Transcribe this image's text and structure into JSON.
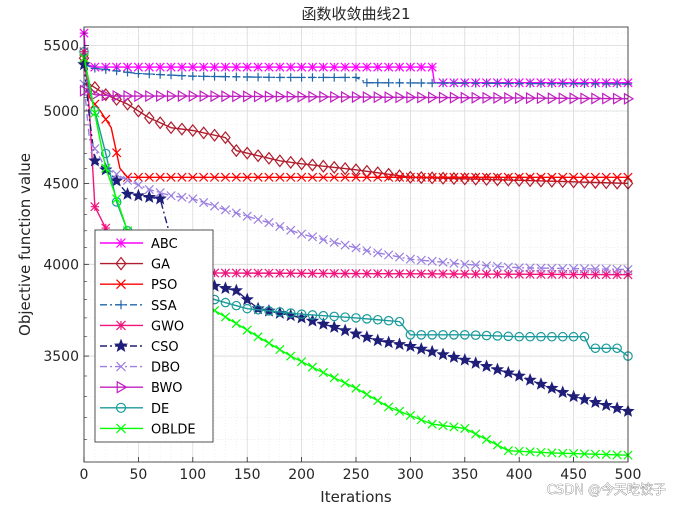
{
  "chart_data": {
    "type": "line",
    "title": "函数收敛曲线21",
    "xlabel": "Iterations",
    "ylabel": "Objective function value",
    "xlim": [
      0,
      500
    ],
    "ylim": [
      3000,
      5650
    ],
    "yscale": "log",
    "grid": true,
    "minor_grid": true,
    "legend_location": "bottom-left",
    "x_ticks": [
      0,
      50,
      100,
      150,
      200,
      250,
      300,
      350,
      400,
      450,
      500
    ],
    "y_ticks": [
      3500,
      4000,
      4500,
      5000,
      5500
    ],
    "y_minor_ticks": [
      3100,
      3200,
      3300,
      3400,
      3600,
      3700,
      3800,
      3900,
      4100,
      4200,
      4300,
      4400,
      4600,
      4700,
      4800,
      4900,
      5100,
      5200,
      5300,
      5400,
      5600
    ],
    "series": [
      {
        "name": "ABC",
        "color": "#ff00ff",
        "dash": "solid",
        "marker": "asterisk",
        "marker_every": 10,
        "points": [
          [
            0,
            5600
          ],
          [
            2,
            5350
          ],
          [
            10,
            5330
          ],
          [
            320,
            5330
          ],
          [
            322,
            5210
          ],
          [
            500,
            5210
          ]
        ]
      },
      {
        "name": "GA",
        "color": "#b01e2e",
        "dash": "solid",
        "marker": "diamond",
        "marker_every": 10,
        "points": [
          [
            0,
            5400
          ],
          [
            5,
            5200
          ],
          [
            20,
            5120
          ],
          [
            40,
            5050
          ],
          [
            60,
            4950
          ],
          [
            80,
            4880
          ],
          [
            100,
            4860
          ],
          [
            130,
            4810
          ],
          [
            140,
            4720
          ],
          [
            180,
            4650
          ],
          [
            200,
            4630
          ],
          [
            250,
            4590
          ],
          [
            300,
            4540
          ],
          [
            350,
            4530
          ],
          [
            400,
            4520
          ],
          [
            500,
            4500
          ]
        ]
      },
      {
        "name": "PSO",
        "color": "#ff0000",
        "dash": "solid",
        "marker": "x",
        "marker_every": 10,
        "points": [
          [
            0,
            5400
          ],
          [
            5,
            5100
          ],
          [
            15,
            5000
          ],
          [
            25,
            4880
          ],
          [
            33,
            4600
          ],
          [
            40,
            4540
          ],
          [
            500,
            4540
          ]
        ]
      },
      {
        "name": "SSA",
        "color": "#2166ac",
        "dash": "dashdot",
        "marker": "plus",
        "marker_every": 10,
        "points": [
          [
            0,
            5350
          ],
          [
            10,
            5320
          ],
          [
            50,
            5280
          ],
          [
            100,
            5260
          ],
          [
            180,
            5250
          ],
          [
            250,
            5250
          ],
          [
            260,
            5210
          ],
          [
            500,
            5200
          ]
        ]
      },
      {
        "name": "GWO",
        "color": "#f0147d",
        "dash": "solid",
        "marker": "asterisk",
        "marker_every": 10,
        "points": [
          [
            0,
            5450
          ],
          [
            5,
            5000
          ],
          [
            10,
            4350
          ],
          [
            25,
            4150
          ],
          [
            40,
            4050
          ],
          [
            60,
            3990
          ],
          [
            100,
            3960
          ],
          [
            120,
            3950
          ],
          [
            500,
            3940
          ]
        ]
      },
      {
        "name": "CSO",
        "color": "#1f1f7a",
        "dash": "dashdot",
        "marker": "star",
        "marker_every": 10,
        "points": [
          [
            0,
            5350
          ],
          [
            5,
            4950
          ],
          [
            10,
            4650
          ],
          [
            25,
            4560
          ],
          [
            40,
            4430
          ],
          [
            70,
            4400
          ],
          [
            80,
            4150
          ],
          [
            100,
            3900
          ],
          [
            140,
            3850
          ],
          [
            160,
            3750
          ],
          [
            200,
            3700
          ],
          [
            230,
            3650
          ],
          [
            270,
            3580
          ],
          [
            300,
            3550
          ],
          [
            350,
            3480
          ],
          [
            400,
            3400
          ],
          [
            450,
            3300
          ],
          [
            500,
            3230
          ]
        ]
      },
      {
        "name": "DBO",
        "color": "#9b7fe0",
        "dash": "dashdot",
        "marker": "x",
        "marker_every": 10,
        "points": [
          [
            0,
            5200
          ],
          [
            5,
            4800
          ],
          [
            20,
            4600
          ],
          [
            40,
            4520
          ],
          [
            60,
            4460
          ],
          [
            80,
            4420
          ],
          [
            100,
            4400
          ],
          [
            130,
            4330
          ],
          [
            170,
            4250
          ],
          [
            200,
            4180
          ],
          [
            230,
            4130
          ],
          [
            260,
            4080
          ],
          [
            300,
            4030
          ],
          [
            350,
            4000
          ],
          [
            400,
            3980
          ],
          [
            500,
            3970
          ]
        ]
      },
      {
        "name": "BWO",
        "color": "#c020c0",
        "dash": "solid",
        "marker": "triangle-right",
        "marker_every": 10,
        "points": [
          [
            0,
            5150
          ],
          [
            10,
            5120
          ],
          [
            30,
            5110
          ],
          [
            100,
            5110
          ],
          [
            300,
            5100
          ],
          [
            500,
            5090
          ]
        ]
      },
      {
        "name": "DE",
        "color": "#1a9a9a",
        "dash": "solid",
        "marker": "circle",
        "marker_every": 10,
        "points": [
          [
            0,
            5450
          ],
          [
            5,
            5150
          ],
          [
            10,
            5000
          ],
          [
            20,
            4700
          ],
          [
            30,
            4380
          ],
          [
            40,
            4200
          ],
          [
            60,
            4050
          ],
          [
            80,
            3900
          ],
          [
            100,
            3850
          ],
          [
            120,
            3800
          ],
          [
            150,
            3750
          ],
          [
            200,
            3720
          ],
          [
            250,
            3700
          ],
          [
            270,
            3690
          ],
          [
            290,
            3680
          ],
          [
            300,
            3610
          ],
          [
            350,
            3610
          ],
          [
            400,
            3600
          ],
          [
            460,
            3600
          ],
          [
            465,
            3540
          ],
          [
            490,
            3540
          ],
          [
            500,
            3500
          ]
        ]
      },
      {
        "name": "OBLDE",
        "color": "#00ff00",
        "dash": "solid",
        "marker": "x",
        "marker_every": 10,
        "points": [
          [
            0,
            5400
          ],
          [
            5,
            5200
          ],
          [
            12,
            4900
          ],
          [
            20,
            4600
          ],
          [
            30,
            4400
          ],
          [
            40,
            4200
          ],
          [
            60,
            4000
          ],
          [
            90,
            3920
          ],
          [
            120,
            3740
          ],
          [
            160,
            3600
          ],
          [
            190,
            3500
          ],
          [
            215,
            3430
          ],
          [
            250,
            3340
          ],
          [
            280,
            3250
          ],
          [
            320,
            3170
          ],
          [
            350,
            3150
          ],
          [
            370,
            3100
          ],
          [
            390,
            3050
          ],
          [
            430,
            3040
          ],
          [
            500,
            3030
          ]
        ]
      }
    ]
  },
  "watermark": "CSDN @今天吃饺子"
}
